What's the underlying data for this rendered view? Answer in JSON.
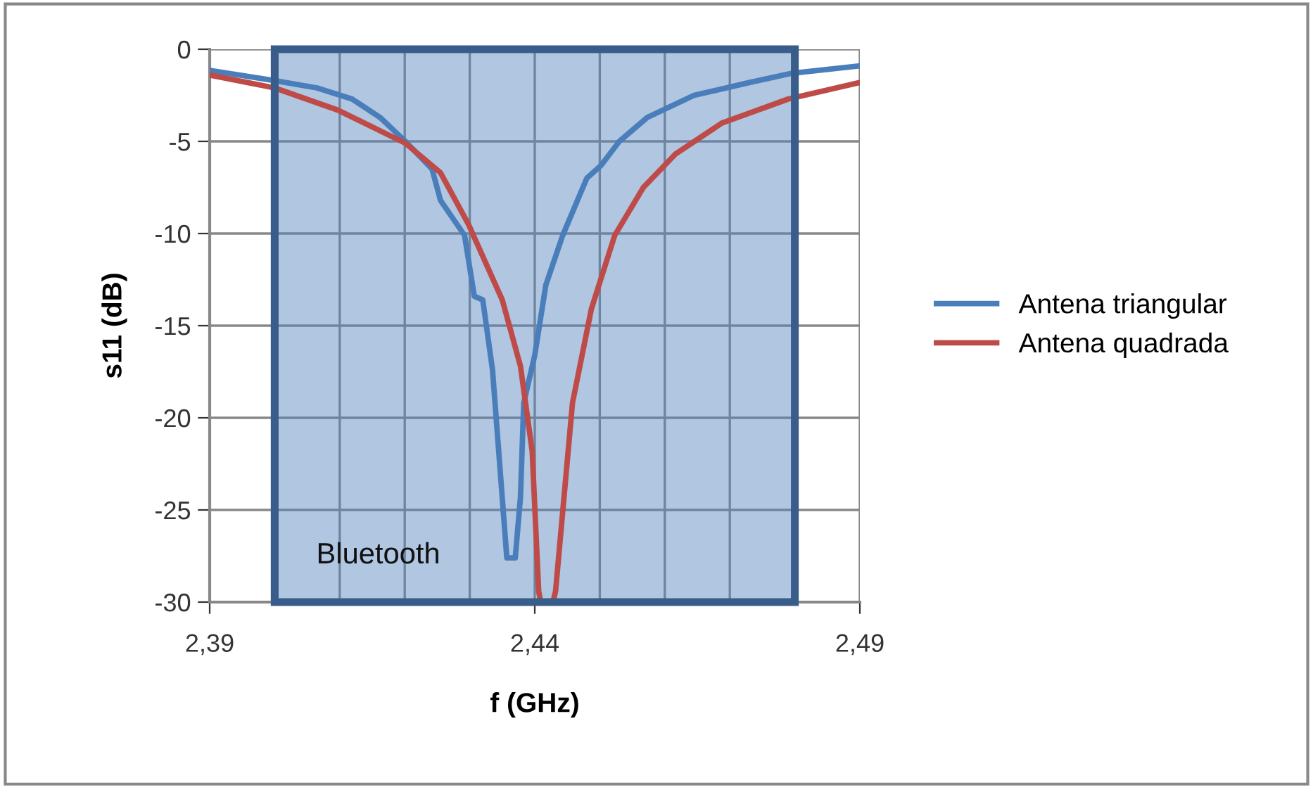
{
  "chart_data": {
    "type": "line",
    "xlabel": "f (GHz)",
    "ylabel": "s11 (dB)",
    "series": [
      {
        "name": "Antena triangular",
        "color": "#4a7ebb",
        "x": [
          2.39,
          2.4,
          2.4065,
          2.4119,
          2.4162,
          2.4201,
          2.4242,
          2.4255,
          2.4292,
          2.4307,
          2.432,
          2.4335,
          2.4357,
          2.437,
          2.4378,
          2.4383,
          2.44,
          2.4417,
          2.4443,
          2.448,
          2.4502,
          2.453,
          2.4573,
          2.4645,
          2.4731,
          2.4796,
          2.49
        ],
        "values": [
          -1.15,
          -1.7,
          -2.1,
          -2.7,
          -3.7,
          -5.0,
          -6.5,
          -8.2,
          -10.1,
          -13.4,
          -13.6,
          -17.4,
          -27.6,
          -27.6,
          -24.3,
          -19.2,
          -16.6,
          -12.8,
          -10.1,
          -7.0,
          -6.3,
          -5.0,
          -3.7,
          -2.5,
          -1.8,
          -1.3,
          -0.9
        ]
      },
      {
        "name": "Antena quadrada",
        "color": "#be4b48",
        "x": [
          2.39,
          2.4,
          2.4097,
          2.4201,
          2.4255,
          2.4298,
          2.435,
          2.4378,
          2.4396,
          2.4406,
          2.4409,
          2.4428,
          2.4432,
          2.4458,
          2.4487,
          2.4523,
          2.4567,
          2.4616,
          2.4688,
          2.479,
          2.49
        ],
        "values": [
          -1.4,
          -2.1,
          -3.3,
          -5.1,
          -6.7,
          -9.5,
          -13.6,
          -17.2,
          -21.8,
          -29.4,
          -30,
          -30,
          -29.4,
          -19.2,
          -14.1,
          -10.1,
          -7.5,
          -5.7,
          -4.0,
          -2.7,
          -1.8
        ]
      }
    ],
    "xlim": [
      2.39,
      2.49
    ],
    "xticks": [
      {
        "value": 2.39,
        "label": "2,39"
      },
      {
        "value": 2.4,
        "label": null
      },
      {
        "value": 2.41,
        "label": null
      },
      {
        "value": 2.42,
        "label": null
      },
      {
        "value": 2.43,
        "label": null
      },
      {
        "value": 2.44,
        "label": "2,44"
      },
      {
        "value": 2.45,
        "label": null
      },
      {
        "value": 2.46,
        "label": null
      },
      {
        "value": 2.47,
        "label": null
      },
      {
        "value": 2.48,
        "label": null
      },
      {
        "value": 2.49,
        "label": "2,49"
      }
    ],
    "ylim": [
      -30,
      0
    ],
    "yticks": [
      -30,
      -25,
      -20,
      -15,
      -10,
      -5,
      0
    ],
    "bands": [
      {
        "axis": "x",
        "from": 2.4,
        "to": 2.48,
        "label": "Bluetooth",
        "color": "#4f81bd"
      }
    ],
    "grid": true,
    "legend": "right",
    "marker": "none",
    "line_style": "solid"
  }
}
